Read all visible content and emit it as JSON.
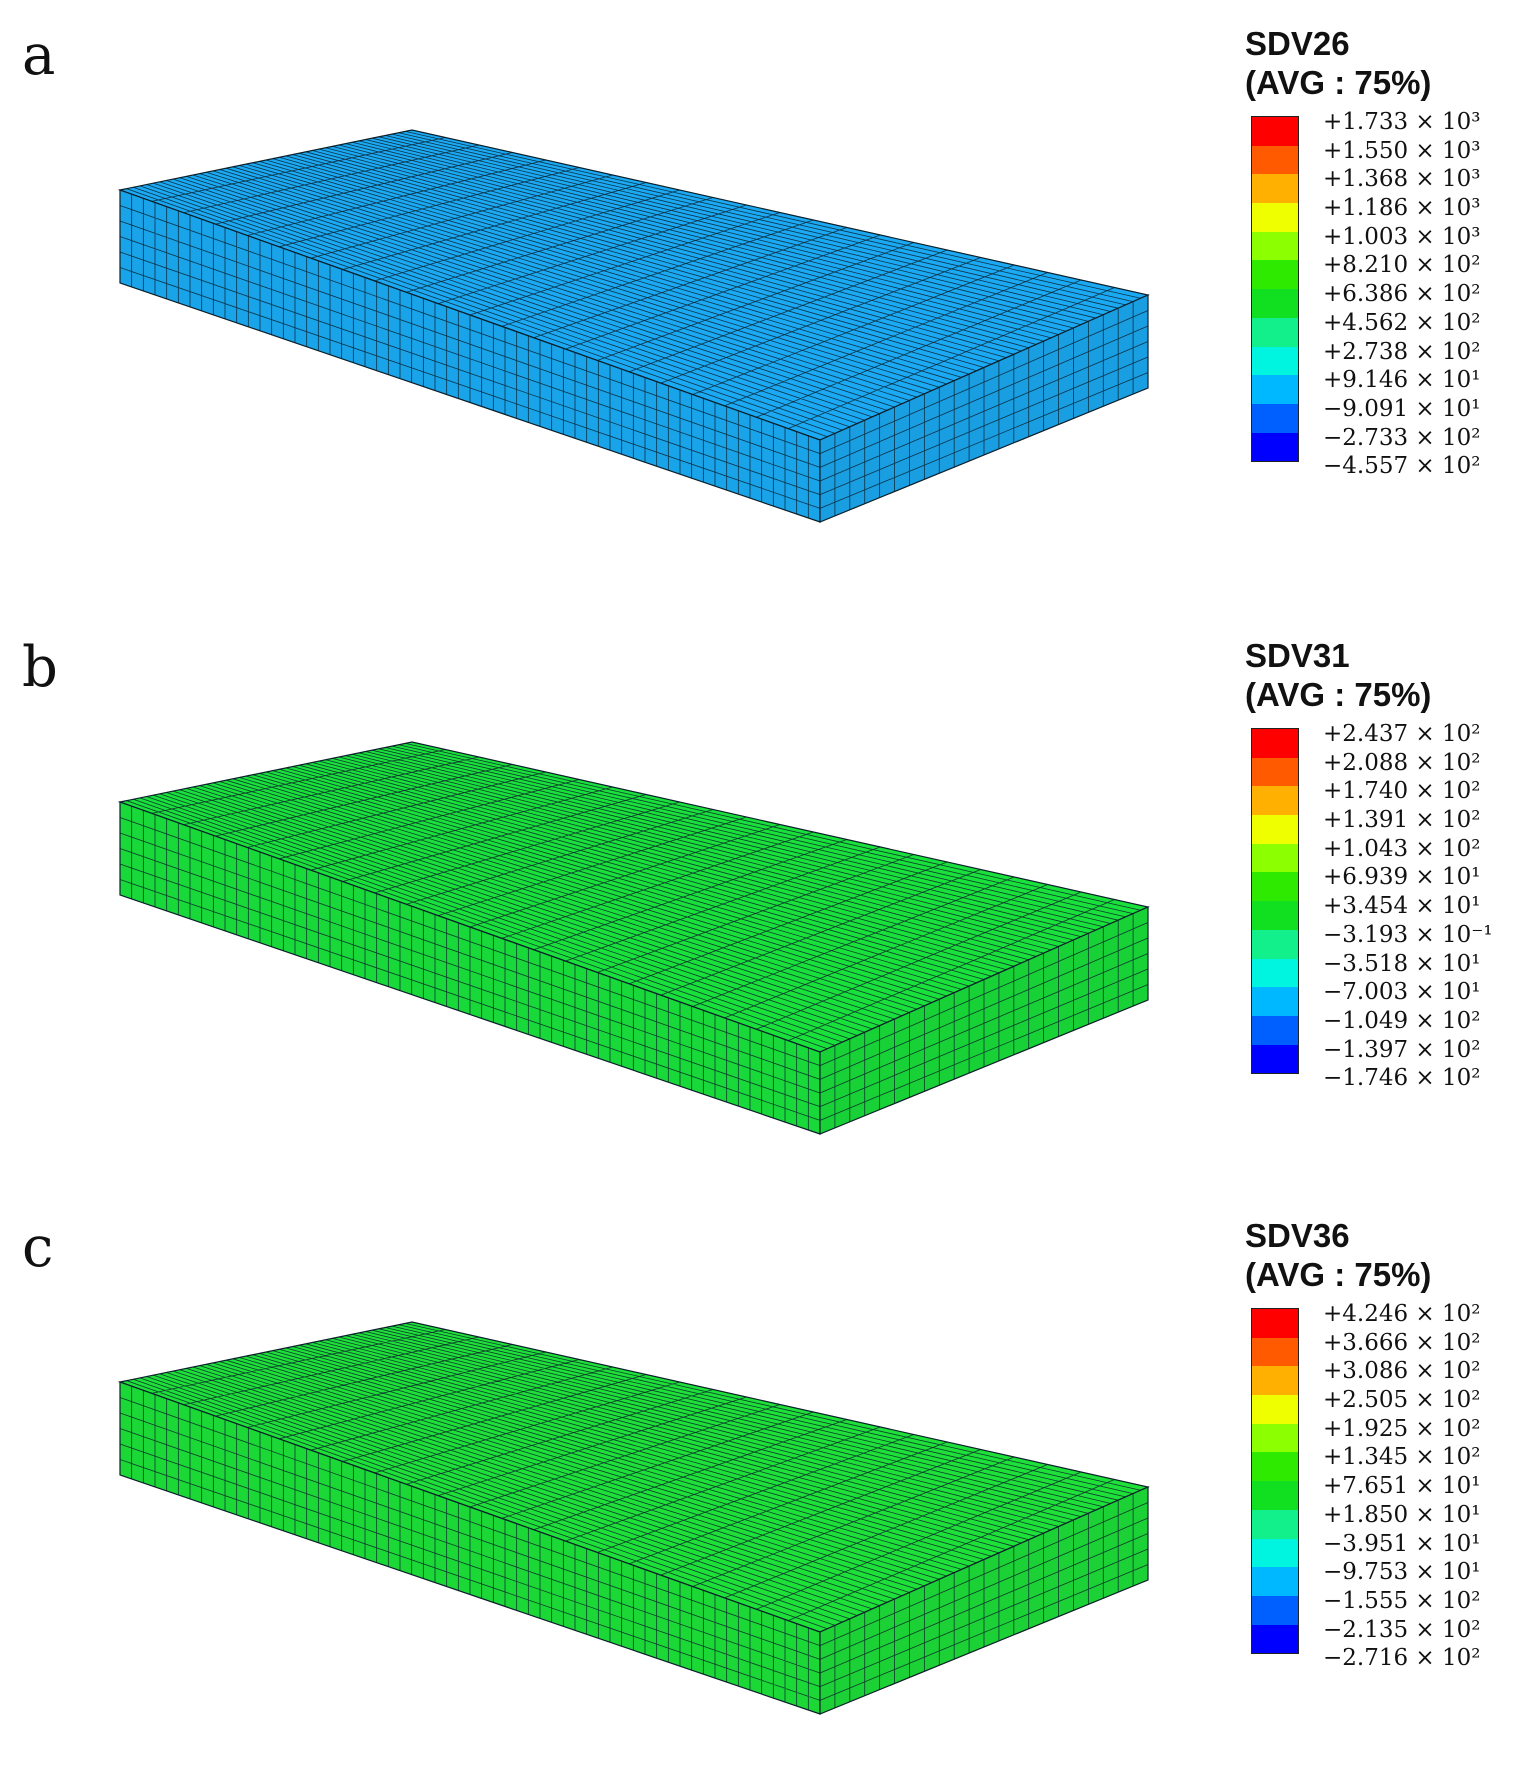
{
  "colors": {
    "scale": [
      "#ff0000",
      "#ff5a00",
      "#ffb000",
      "#f0ff00",
      "#8cff00",
      "#2eea00",
      "#11e021",
      "#12f08c",
      "#00f5e0",
      "#00b8ff",
      "#0060ff",
      "#0000ff"
    ],
    "mesh_line": "#0b1f2a"
  },
  "panels": [
    {
      "letter": "a",
      "title": "SDV26",
      "avg": "(AVG : 75%)",
      "field_color": "#1aa6ee",
      "labels": [
        "+1.733 × 10³",
        "+1.550 × 10³",
        "+1.368 × 10³",
        "+1.186 × 10³",
        "+1.003 × 10³",
        "+8.210 × 10²",
        "+6.386 × 10²",
        "+4.562 × 10²",
        "+2.738 × 10²",
        "+9.146 × 10¹",
        "−9.091 × 10¹",
        "−2.733 × 10²",
        "−4.557 × 10²"
      ]
    },
    {
      "letter": "b",
      "title": "SDV31",
      "avg": "(AVG : 75%)",
      "field_color": "#19dc3a",
      "labels": [
        "+2.437 × 10²",
        "+2.088 × 10²",
        "+1.740 × 10²",
        "+1.391 × 10²",
        "+1.043 × 10²",
        "+6.939 × 10¹",
        "+3.454 × 10¹",
        "−3.193 × 10⁻¹",
        "−3.518 × 10¹",
        "−7.003 × 10¹",
        "−1.049 × 10²",
        "−1.397 × 10²",
        "−1.746 × 10²"
      ]
    },
    {
      "letter": "c",
      "title": "SDV36",
      "avg": "(AVG : 75%)",
      "field_color": "#1ddc38",
      "labels": [
        "+4.246 × 10²",
        "+3.666 × 10²",
        "+3.086 × 10²",
        "+2.505 × 10²",
        "+1.925 × 10²",
        "+1.345 × 10²",
        "+7.651 × 10¹",
        "+1.850 × 10¹",
        "−3.951 × 10¹",
        "−9.753 × 10¹",
        "−1.555 × 10²",
        "−2.135 × 10²",
        "−2.716 × 10²"
      ]
    }
  ]
}
